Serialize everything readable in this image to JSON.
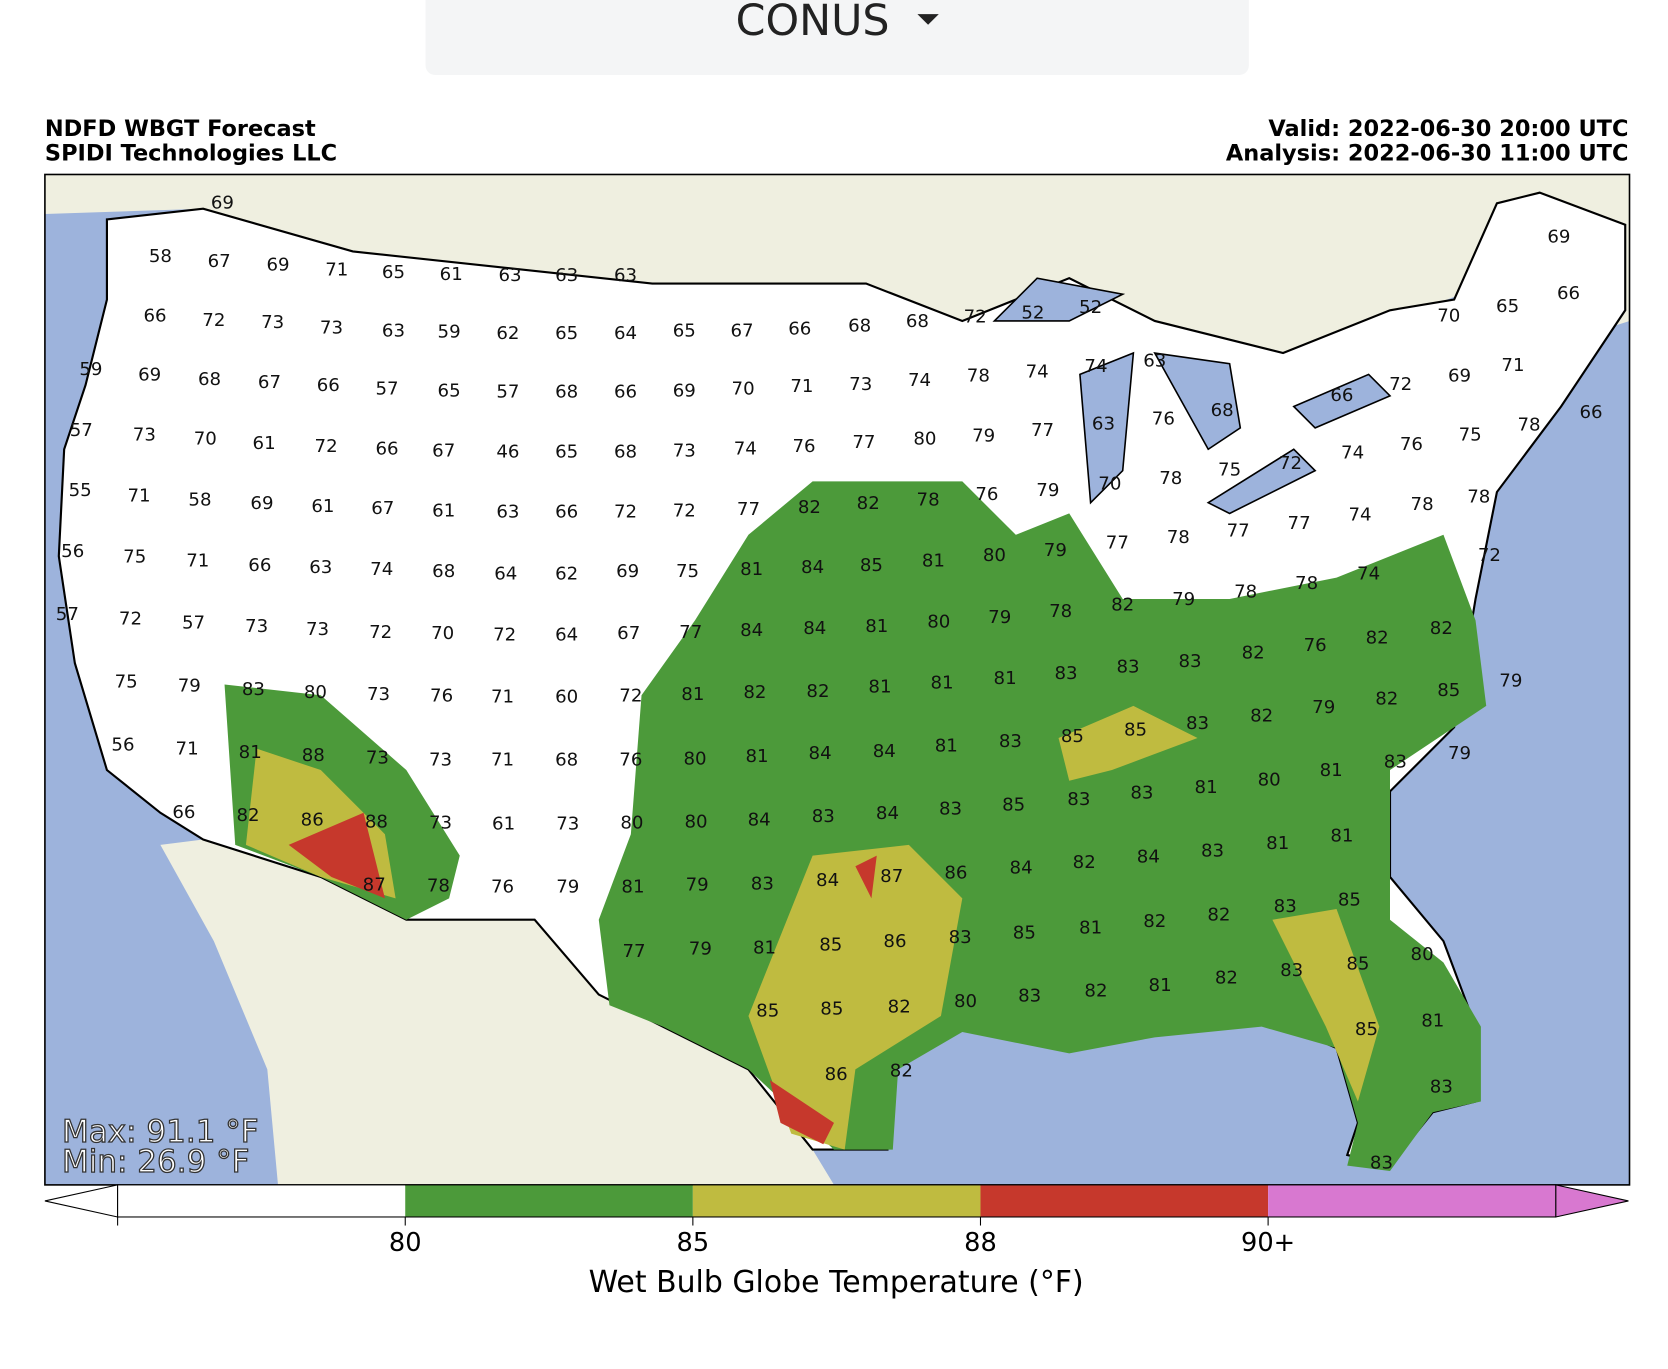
{
  "dropdown": {
    "label": "CONUS"
  },
  "header": {
    "title": "NDFD WBGT Forecast",
    "source": "SPIDI Technologies LLC",
    "valid": "Valid: 2022-06-30 20:00 UTC",
    "analysis": "Analysis: 2022-06-30 11:00 UTC"
  },
  "map": {
    "max": "Max: 91.1 °F",
    "min": "Min: 26.9 °F",
    "station_rows": [
      [
        69
      ],
      [
        58,
        67,
        69,
        71,
        65,
        61,
        63,
        63,
        63
      ],
      [
        66,
        72,
        73,
        73,
        63,
        59,
        62,
        65,
        64,
        65,
        67,
        66,
        68,
        68,
        72,
        52,
        52,
        70,
        65,
        69,
        66
      ],
      [
        59,
        69,
        68,
        67,
        66,
        57,
        65,
        57,
        68,
        66,
        69,
        70,
        71,
        73,
        74,
        78,
        74,
        74,
        63,
        72,
        69,
        71,
        66
      ],
      [
        57,
        73,
        70,
        61,
        72,
        66,
        67,
        46,
        65,
        68,
        73,
        74,
        76,
        77,
        80,
        79,
        77,
        63,
        76,
        68,
        75,
        76,
        74,
        72,
        75,
        78,
        66
      ],
      [
        55,
        71,
        58,
        69,
        61,
        67,
        61,
        63,
        66,
        72,
        72,
        77,
        82,
        82,
        78,
        76,
        79,
        70,
        78,
        78,
        78,
        74,
        77,
        77,
        78,
        77
      ],
      [
        56,
        75,
        71,
        66,
        63,
        74,
        68,
        64,
        62,
        69,
        75,
        81,
        84,
        85,
        81,
        80,
        79,
        72,
        74,
        78,
        78,
        79,
        82,
        78
      ],
      [
        57,
        72,
        57,
        73,
        73,
        72,
        70,
        72,
        64,
        67,
        77,
        84,
        84,
        81,
        80,
        79,
        82,
        82,
        76,
        82,
        83,
        83,
        83
      ],
      [
        75,
        79,
        83,
        80,
        73,
        76,
        71,
        60,
        72,
        81,
        82,
        82,
        81,
        81,
        81,
        79,
        85,
        82,
        79,
        82,
        83,
        85,
        85
      ],
      [
        56,
        71,
        81,
        88,
        73,
        73,
        71,
        68,
        76,
        80,
        81,
        84,
        84,
        81,
        83,
        79,
        83,
        81,
        80,
        81,
        83,
        83
      ],
      [
        66,
        82,
        86,
        88,
        73,
        61,
        73,
        80,
        80,
        84,
        83,
        84,
        83,
        85,
        81,
        81,
        83,
        84,
        82,
        84,
        86
      ],
      [
        87,
        78,
        76,
        79,
        81,
        79,
        83,
        84,
        87,
        85,
        83,
        82,
        82,
        81,
        85,
        83
      ],
      [
        77,
        79,
        81,
        85,
        86,
        80,
        85,
        83,
        82,
        81,
        82,
        83,
        80,
        82,
        85,
        85
      ],
      [
        81,
        85,
        86,
        82,
        83,
        83
      ]
    ]
  },
  "colorbar": {
    "label": "Wet Bulb Globe Temperature (°F)",
    "ticks": [
      "80",
      "85",
      "88",
      "90+"
    ],
    "colors": [
      "#ffffff",
      "#4c9a3a",
      "#bfbb40",
      "#c6382c",
      "#d878d0"
    ]
  }
}
